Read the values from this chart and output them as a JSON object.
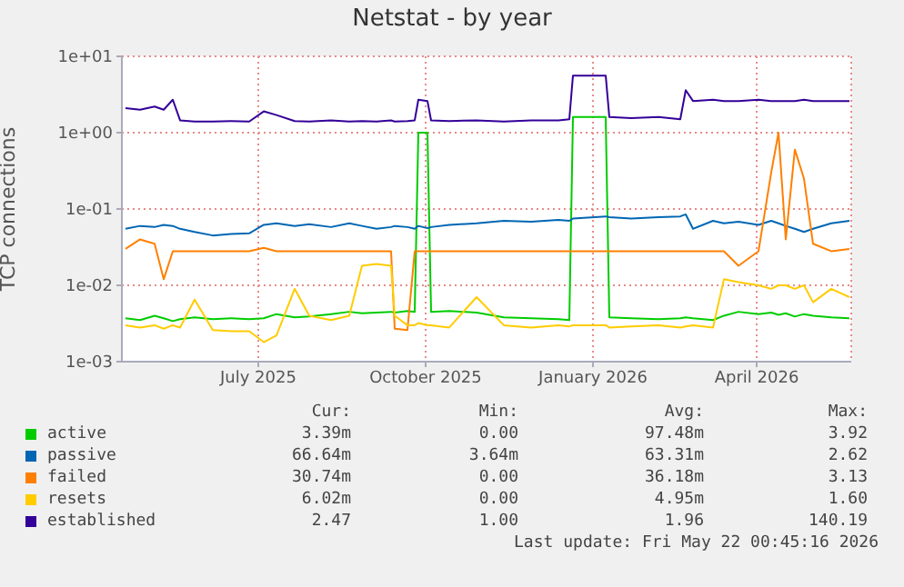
{
  "chart_data": {
    "type": "line",
    "title": "Netstat - by year",
    "ylabel": "TCP connections",
    "x": [
      "2025-04-19",
      "2025-04-27",
      "2025-05-05",
      "2025-05-10",
      "2025-05-15",
      "2025-05-19",
      "2025-05-27",
      "2025-06-06",
      "2025-06-16",
      "2025-06-26",
      "2025-07-04",
      "2025-07-11",
      "2025-07-21",
      "2025-07-29",
      "2025-08-10",
      "2025-08-20",
      "2025-08-27",
      "2025-09-04",
      "2025-09-12",
      "2025-09-14",
      "2025-09-21",
      "2025-09-25",
      "2025-09-27",
      "2025-10-02",
      "2025-10-04",
      "2025-10-14",
      "2025-10-29",
      "2025-11-13",
      "2025-11-28",
      "2025-12-13",
      "2025-12-19",
      "2025-12-21",
      "2026-01-08",
      "2026-01-10",
      "2026-01-22",
      "2026-02-06",
      "2026-02-18",
      "2026-02-21",
      "2026-02-25",
      "2026-03-08",
      "2026-03-14",
      "2026-03-22",
      "2026-04-02",
      "2026-04-09",
      "2026-04-13",
      "2026-04-17",
      "2026-04-22",
      "2026-04-27",
      "2026-05-02",
      "2026-05-12",
      "2026-05-22"
    ],
    "series": [
      {
        "name": "active",
        "color": "#00cc00",
        "values": [
          0.0037,
          0.0035,
          0.004,
          0.0037,
          0.0034,
          0.0036,
          0.0038,
          0.0036,
          0.0037,
          0.0036,
          0.0037,
          0.0042,
          0.0038,
          0.0039,
          0.0042,
          0.0045,
          0.0043,
          0.0044,
          0.0045,
          0.0044,
          0.0046,
          0.0045,
          1.0,
          1.0,
          0.0045,
          0.0046,
          0.0044,
          0.0038,
          0.0037,
          0.0036,
          0.0035,
          1.6,
          1.6,
          0.0038,
          0.0037,
          0.0036,
          0.0037,
          0.0038,
          0.0037,
          0.0035,
          0.004,
          0.0045,
          0.0042,
          0.0044,
          0.0041,
          0.0043,
          0.0039,
          0.0042,
          0.004,
          0.0038,
          0.0037
        ]
      },
      {
        "name": "passive",
        "color": "#0066b3",
        "values": [
          0.055,
          0.06,
          0.058,
          0.062,
          0.06,
          0.055,
          0.05,
          0.045,
          0.047,
          0.048,
          0.062,
          0.065,
          0.06,
          0.063,
          0.058,
          0.065,
          0.06,
          0.055,
          0.058,
          0.06,
          0.058,
          0.055,
          0.06,
          0.056,
          0.058,
          0.062,
          0.065,
          0.07,
          0.068,
          0.072,
          0.07,
          0.075,
          0.08,
          0.078,
          0.075,
          0.078,
          0.08,
          0.085,
          0.055,
          0.07,
          0.065,
          0.068,
          0.062,
          0.07,
          0.065,
          0.06,
          0.055,
          0.05,
          0.055,
          0.065,
          0.07
        ]
      },
      {
        "name": "failed",
        "color": "#ff8000",
        "values": [
          0.03,
          0.04,
          0.035,
          0.012,
          0.028,
          0.028,
          0.028,
          0.028,
          0.028,
          0.028,
          0.031,
          0.028,
          0.028,
          0.028,
          0.028,
          0.028,
          0.028,
          0.028,
          0.028,
          0.0027,
          0.0026,
          0.028,
          0.028,
          0.028,
          0.028,
          0.028,
          0.028,
          0.028,
          0.028,
          0.028,
          0.028,
          0.028,
          0.028,
          0.028,
          0.028,
          0.028,
          0.028,
          0.028,
          0.028,
          0.028,
          0.028,
          0.018,
          0.028,
          0.3,
          1.0,
          0.04,
          0.6,
          0.25,
          0.035,
          0.028,
          0.03
        ]
      },
      {
        "name": "resets",
        "color": "#ffcc00",
        "values": [
          0.003,
          0.0028,
          0.003,
          0.0027,
          0.003,
          0.0028,
          0.0065,
          0.0026,
          0.0025,
          0.0025,
          0.0018,
          0.0022,
          0.009,
          0.004,
          0.0035,
          0.004,
          0.018,
          0.019,
          0.018,
          0.004,
          0.003,
          0.003,
          0.0032,
          0.003,
          0.003,
          0.0028,
          0.007,
          0.003,
          0.0028,
          0.003,
          0.0029,
          0.003,
          0.003,
          0.0028,
          0.0029,
          0.003,
          0.0028,
          0.0029,
          0.003,
          0.0028,
          0.012,
          0.011,
          0.01,
          0.009,
          0.01,
          0.01,
          0.009,
          0.01,
          0.006,
          0.009,
          0.007
        ]
      },
      {
        "name": "established",
        "color": "#330099",
        "values": [
          2.1,
          2.0,
          2.2,
          2.0,
          2.7,
          1.45,
          1.4,
          1.4,
          1.42,
          1.4,
          1.9,
          1.7,
          1.42,
          1.4,
          1.45,
          1.4,
          1.42,
          1.4,
          1.45,
          1.4,
          1.42,
          1.45,
          2.7,
          2.6,
          1.45,
          1.42,
          1.45,
          1.4,
          1.45,
          1.45,
          1.5,
          5.6,
          5.6,
          1.6,
          1.55,
          1.6,
          1.5,
          3.6,
          2.6,
          2.7,
          2.6,
          2.6,
          2.7,
          2.6,
          2.6,
          2.6,
          2.6,
          2.7,
          2.6,
          2.6,
          2.6
        ]
      }
    ],
    "log": "y",
    "xlim": [
      "2025-04-17",
      "2026-05-23"
    ],
    "xticks": [
      {
        "value": "2025-07-01",
        "label": "July 2025"
      },
      {
        "value": "2025-10-01",
        "label": "October 2025"
      },
      {
        "value": "2026-01-01",
        "label": "January 2026"
      },
      {
        "value": "2026-04-01",
        "label": "April 2026"
      }
    ],
    "ylim": [
      0.001,
      10
    ],
    "yticks": [
      {
        "value": 0.001,
        "label": "1e-03"
      },
      {
        "value": 0.01,
        "label": "1e-02"
      },
      {
        "value": 0.1,
        "label": "1e-01"
      },
      {
        "value": 1,
        "label": "1e+00"
      },
      {
        "value": 10,
        "label": "1e+01"
      }
    ],
    "grid": true,
    "legend": "bottom",
    "marker": "none",
    "line_style": "solid",
    "annotations": [
      "Cur:",
      "Min:",
      "Avg:",
      "Max:",
      "3.39m",
      "0.00",
      "97.48m",
      "3.92",
      "66.64m",
      "3.64m",
      "63.31m",
      "2.62",
      "30.74m",
      "0.00",
      "36.18m",
      "3.13",
      "6.02m",
      "0.00",
      "4.95m",
      "1.60",
      "2.47",
      "1.00",
      "1.96",
      "140.19",
      "Last update: Fri May 22 00:45:16 2026"
    ]
  }
}
